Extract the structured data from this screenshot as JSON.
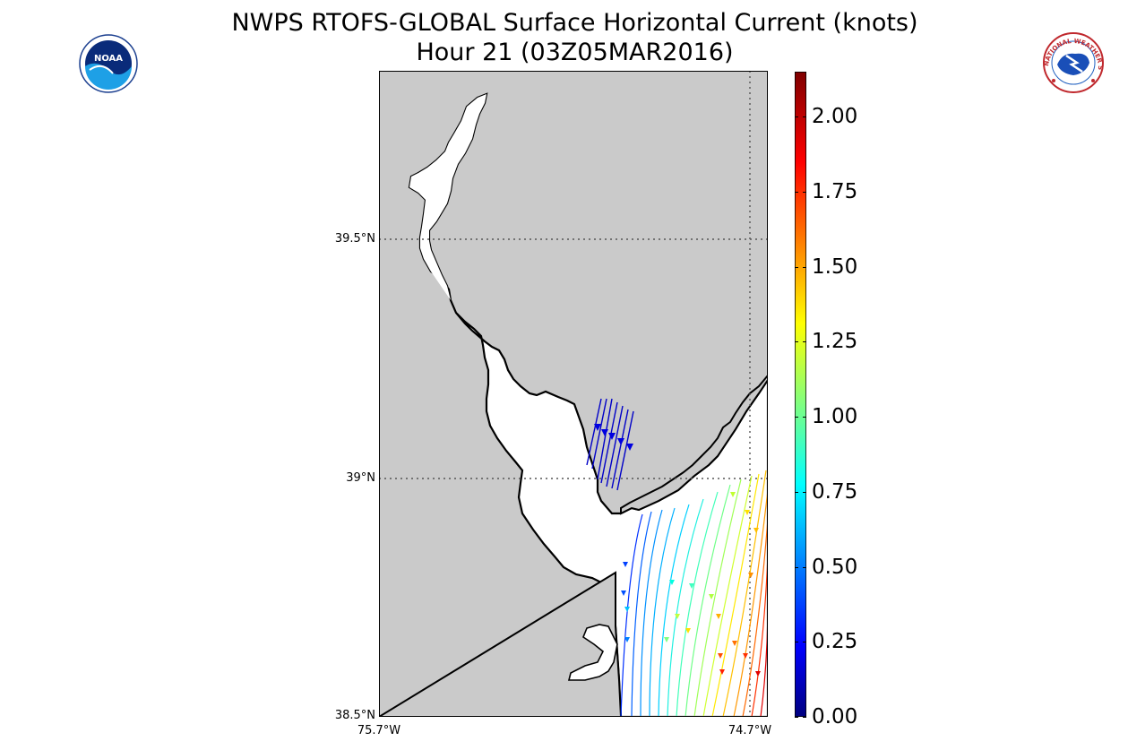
{
  "title": {
    "line1": "NWPS RTOFS-GLOBAL Surface Horizontal Current (knots)",
    "line2": "Hour 21 (03Z05MAR2016)"
  },
  "logos": {
    "left": {
      "icon": "noaa-logo",
      "text": "NOAA"
    },
    "right": {
      "icon": "nws-logo",
      "text": "NATIONAL WEATHER SERVICE"
    }
  },
  "map": {
    "latitude_labels": [
      "39.5°N",
      "39°N",
      "38.5°N"
    ],
    "longitude_labels": [
      "75.7°W",
      "74.7°W"
    ],
    "land_color": "#cacaca",
    "water_color": "#ffffff",
    "gridline_style": "dotted"
  },
  "colorbar": {
    "colormap": "jet",
    "min": 0.0,
    "max": 2.15,
    "tick_labels": [
      "0.00",
      "0.25",
      "0.50",
      "0.75",
      "1.00",
      "1.25",
      "1.50",
      "1.75",
      "2.00"
    ],
    "tick_values": [
      0,
      0.25,
      0.5,
      0.75,
      1.0,
      1.25,
      1.5,
      1.75,
      2.0
    ]
  }
}
